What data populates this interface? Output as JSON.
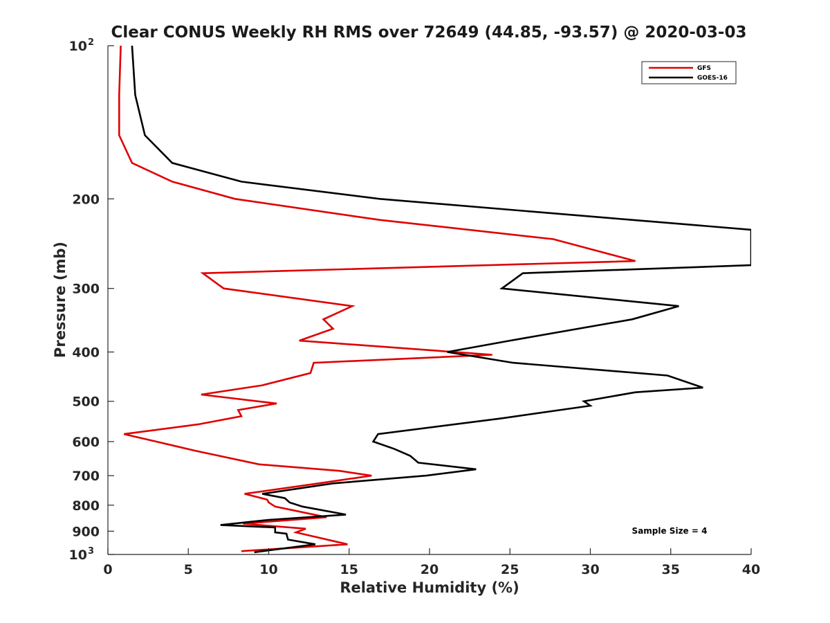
{
  "chart_data": {
    "type": "line",
    "title": "Clear CONUS Weekly RH RMS over 72649 (44.85, -93.57) @ 2020-03-03",
    "xlabel": "Relative Humidity (%)",
    "ylabel": "Pressure (mb)",
    "xlim": [
      0,
      40
    ],
    "ylim": [
      100,
      1000
    ],
    "y_scale": "log",
    "y_reversed": true,
    "grid": false,
    "legend_position": "top-right",
    "x_ticks": [
      "0",
      "5",
      "10",
      "15",
      "20",
      "25",
      "30",
      "35",
      "40"
    ],
    "y_ticks": [
      {
        "value": 100,
        "base": "10",
        "exp": "2"
      },
      {
        "value": 200,
        "label": "200"
      },
      {
        "value": 300,
        "label": "300"
      },
      {
        "value": 400,
        "label": "400"
      },
      {
        "value": 500,
        "label": "500"
      },
      {
        "value": 600,
        "label": "600"
      },
      {
        "value": 700,
        "label": "700"
      },
      {
        "value": 800,
        "label": "800"
      },
      {
        "value": 900,
        "label": "900"
      },
      {
        "value": 1000,
        "base": "10",
        "exp": "3"
      }
    ],
    "annotation": "Sample Size = 4",
    "series": [
      {
        "name": "GFS",
        "color": "#e00000",
        "points": [
          [
            0.8,
            100
          ],
          [
            0.7,
            125
          ],
          [
            0.7,
            150
          ],
          [
            1.5,
            170
          ],
          [
            4.0,
            185
          ],
          [
            7.9,
            200
          ],
          [
            16.9,
            220
          ],
          [
            27.7,
            240
          ],
          [
            32.8,
            265
          ],
          [
            5.9,
            280
          ],
          [
            7.2,
            300
          ],
          [
            15.2,
            325
          ],
          [
            13.4,
            345
          ],
          [
            14.0,
            360
          ],
          [
            11.9,
            380
          ],
          [
            23.9,
            405
          ],
          [
            12.8,
            420
          ],
          [
            12.6,
            440
          ],
          [
            9.6,
            465
          ],
          [
            5.8,
            485
          ],
          [
            10.5,
            505
          ],
          [
            8.1,
            520
          ],
          [
            8.3,
            535
          ],
          [
            5.6,
            555
          ],
          [
            1.0,
            580
          ],
          [
            3.0,
            600
          ],
          [
            5.4,
            625
          ],
          [
            9.4,
            665
          ],
          [
            14.4,
            685
          ],
          [
            16.4,
            700
          ],
          [
            13.1,
            725
          ],
          [
            8.5,
            760
          ],
          [
            9.9,
            780
          ],
          [
            10.0,
            790
          ],
          [
            10.4,
            805
          ],
          [
            13.6,
            845
          ],
          [
            8.4,
            870
          ],
          [
            12.3,
            890
          ],
          [
            11.7,
            905
          ],
          [
            14.9,
            955
          ],
          [
            8.3,
            985
          ]
        ]
      },
      {
        "name": "GOES-16",
        "color": "#000000",
        "points": [
          [
            1.5,
            100
          ],
          [
            1.7,
            125
          ],
          [
            2.3,
            150
          ],
          [
            4.0,
            170
          ],
          [
            8.3,
            185
          ],
          [
            16.9,
            200
          ],
          [
            32.6,
            220
          ],
          [
            40.0,
            230
          ],
          [
            40.0,
            270
          ],
          [
            25.8,
            280
          ],
          [
            24.5,
            300
          ],
          [
            35.5,
            325
          ],
          [
            32.6,
            345
          ],
          [
            25.0,
            380
          ],
          [
            21.1,
            400
          ],
          [
            25.2,
            420
          ],
          [
            34.8,
            445
          ],
          [
            37.0,
            470
          ],
          [
            32.8,
            480
          ],
          [
            29.6,
            500
          ],
          [
            30.0,
            510
          ],
          [
            24.5,
            540
          ],
          [
            16.8,
            580
          ],
          [
            16.5,
            600
          ],
          [
            17.8,
            620
          ],
          [
            18.8,
            640
          ],
          [
            19.3,
            660
          ],
          [
            22.9,
            680
          ],
          [
            19.8,
            700
          ],
          [
            14.0,
            725
          ],
          [
            9.6,
            760
          ],
          [
            11.0,
            775
          ],
          [
            11.3,
            790
          ],
          [
            12.1,
            805
          ],
          [
            14.8,
            835
          ],
          [
            10.0,
            855
          ],
          [
            7.0,
            875
          ],
          [
            10.4,
            885
          ],
          [
            10.4,
            905
          ],
          [
            11.1,
            910
          ],
          [
            11.2,
            935
          ],
          [
            12.9,
            955
          ],
          [
            9.1,
            990
          ]
        ]
      }
    ]
  }
}
